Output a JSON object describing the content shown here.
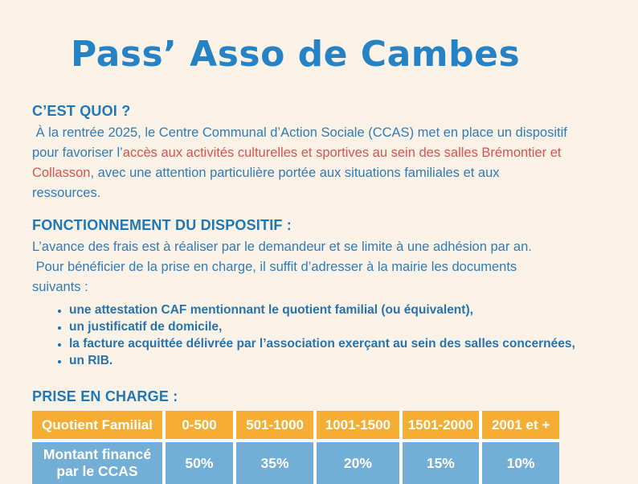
{
  "page": {
    "title": "Pass’ Asso de Cambes"
  },
  "colors": {
    "page_bg": "#FBF2E7",
    "title_blue": "#2583C5",
    "heading_blue": "#1E78B7",
    "body_blue": "#2F7CB7",
    "accent_red": "#D9534E",
    "bullet_blue": "#2673AE",
    "table_header_bg": "#F5AE33",
    "table_row_bg": "#73AED7",
    "table_border": "#FFFFFF",
    "cell_text": "#FFFFFF"
  },
  "sections": {
    "what": {
      "heading": "C’EST QUOI ?",
      "paragraph_segments": [
        {
          "text": " À la rentrée 2025, le Centre Communal d’Action Sociale (CCAS) met en place un dispositif pour favoriser l’",
          "style": "blue"
        },
        {
          "text": "accès aux activités culturelles et sportives au sein des salles Brémontier et Collasson",
          "style": "red"
        },
        {
          "text": ", avec une attention particulière portée aux situations familiales et aux ressources.",
          "style": "blue"
        }
      ]
    },
    "how": {
      "heading": "FONCTIONNEMENT DU DISPOSITIF :",
      "paragraph": "L’avance des frais est à réaliser par le demandeur et se limite à une adhésion par an.\n Pour bénéficier de la prise en charge, il suffit d’adresser à la mairie les documents suivants :",
      "bullets": [
        "une attestation CAF mentionnant le quotient familial (ou équivalent),",
        "un justificatif de domicile,",
        "la facture acquittée délivrée par l’association exerçant au sein des salles concernées,",
        "un RIB."
      ]
    },
    "coverage": {
      "heading": "PRISE EN CHARGE :",
      "table": {
        "header": [
          "Quotient Familial",
          "0-500",
          "501-1000",
          "1001-1500",
          "1501-2000",
          "2001 et +"
        ],
        "row": [
          "Montant financé par le CCAS",
          "50%",
          "35%",
          "20%",
          "15%",
          "10%"
        ]
      }
    }
  }
}
